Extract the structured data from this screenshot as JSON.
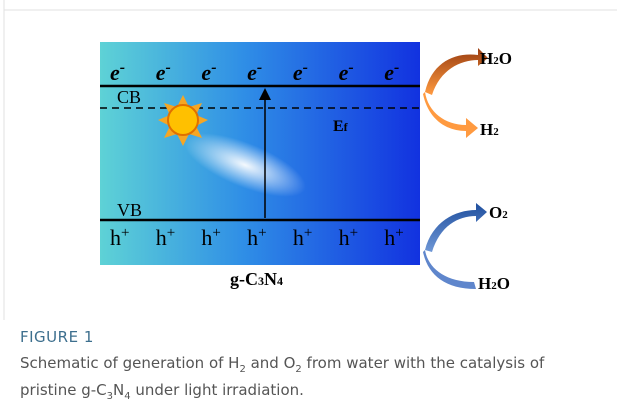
{
  "figure": {
    "diagram": {
      "electrons": [
        {
          "symbol": "e",
          "charge": "-"
        },
        {
          "symbol": "e",
          "charge": "-"
        },
        {
          "symbol": "e",
          "charge": "-"
        },
        {
          "symbol": "e",
          "charge": "-"
        },
        {
          "symbol": "e",
          "charge": "-"
        },
        {
          "symbol": "e",
          "charge": "-"
        },
        {
          "symbol": "e",
          "charge": "-"
        }
      ],
      "holes": [
        {
          "symbol": "h",
          "charge": "+"
        },
        {
          "symbol": "h",
          "charge": "+"
        },
        {
          "symbol": "h",
          "charge": "+"
        },
        {
          "symbol": "h",
          "charge": "+"
        },
        {
          "symbol": "h",
          "charge": "+"
        },
        {
          "symbol": "h",
          "charge": "+"
        },
        {
          "symbol": "h",
          "charge": "+"
        }
      ],
      "cb_label": "CB",
      "vb_label": "VB",
      "fermi_label": [
        "E",
        "f"
      ],
      "material_label": [
        "g-C",
        "3",
        "N",
        "4"
      ],
      "reduction": {
        "reactant": [
          "H",
          "2",
          "O"
        ],
        "product": [
          "H",
          "2"
        ]
      },
      "oxidation": {
        "reactant": [
          "H",
          "2",
          "O"
        ],
        "product": [
          "O",
          "2"
        ]
      }
    },
    "caption": {
      "label": "FIGURE 1",
      "text": [
        "Schematic of generation of H",
        "2",
        " and O",
        "2",
        " from water with the catalysis of pristine g-C",
        "3",
        "N",
        "4",
        " under light irradiation."
      ]
    }
  }
}
